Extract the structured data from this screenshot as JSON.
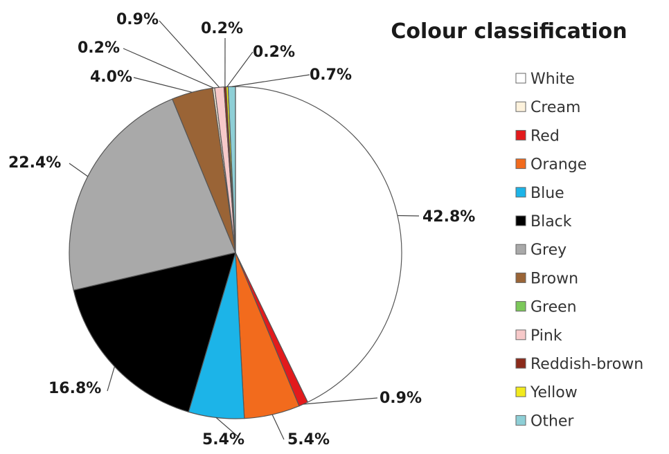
{
  "chart_data": {
    "type": "pie",
    "title": "Colour classification",
    "start": "top",
    "direction": "clockwise",
    "legend_position": "right",
    "slices": [
      {
        "name": "White",
        "value": 42.8,
        "label": "42.8%",
        "color": "#ffffff"
      },
      {
        "name": "Red",
        "value": 0.9,
        "label": "0.9%",
        "color": "#e31a1c"
      },
      {
        "name": "Orange",
        "value": 5.4,
        "label": "5.4%",
        "color": "#f26b1d"
      },
      {
        "name": "Blue",
        "value": 5.4,
        "label": "5.4%",
        "color": "#1cb4e8"
      },
      {
        "name": "Black",
        "value": 16.8,
        "label": "16.8%",
        "color": "#000000"
      },
      {
        "name": "Grey",
        "value": 22.4,
        "label": "22.4%",
        "color": "#a9a9a9"
      },
      {
        "name": "Brown",
        "value": 4.0,
        "label": "4.0%",
        "color": "#9a6436"
      },
      {
        "name": "Cream",
        "value": 0.2,
        "label": "0.2%",
        "color": "#fdf2dc"
      },
      {
        "name": "Pink",
        "value": 0.9,
        "label": "0.9%",
        "color": "#f7c9c9"
      },
      {
        "name": "Reddish-brown",
        "value": 0.2,
        "label": "0.2%",
        "color": "#8b2a1a"
      },
      {
        "name": "Yellow",
        "value": 0.2,
        "label": "0.2%",
        "color": "#f2ea1d"
      },
      {
        "name": "Green",
        "value": 0.0,
        "label": "",
        "color": "#7cc85a"
      },
      {
        "name": "Other",
        "value": 0.7,
        "label": "0.7%",
        "color": "#8ecfd6"
      }
    ],
    "legend": [
      {
        "name": "White",
        "color": "#ffffff"
      },
      {
        "name": "Cream",
        "color": "#fdf2dc"
      },
      {
        "name": "Red",
        "color": "#e31a1c"
      },
      {
        "name": "Orange",
        "color": "#f26b1d"
      },
      {
        "name": "Blue",
        "color": "#1cb4e8"
      },
      {
        "name": "Black",
        "color": "#000000"
      },
      {
        "name": "Grey",
        "color": "#a9a9a9"
      },
      {
        "name": "Brown",
        "color": "#9a6436"
      },
      {
        "name": "Green",
        "color": "#7cc85a"
      },
      {
        "name": "Pink",
        "color": "#f7c9c9"
      },
      {
        "name": "Reddish-brown",
        "color": "#8b2a1a"
      },
      {
        "name": "Yellow",
        "color": "#f2ea1d"
      },
      {
        "name": "Other",
        "color": "#8ecfd6"
      }
    ]
  }
}
